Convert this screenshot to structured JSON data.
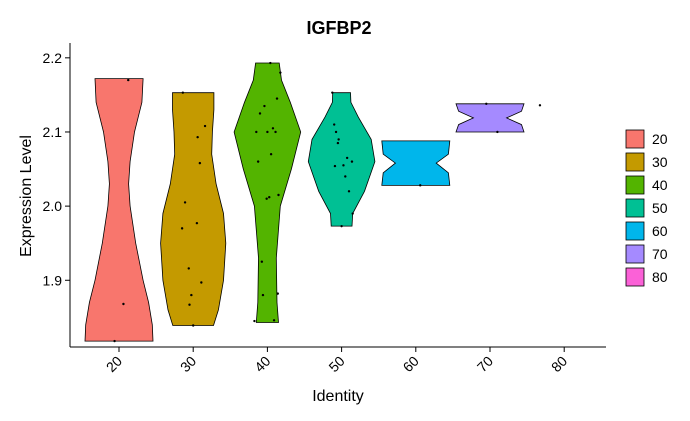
{
  "chart_data": {
    "type": "violin",
    "title": "IGFBP2",
    "xlabel": "Identity",
    "ylabel": "Expression Level",
    "categories": [
      "20",
      "30",
      "40",
      "50",
      "60",
      "70",
      "80"
    ],
    "ylim": [
      1.81,
      2.22
    ],
    "yticks": [
      1.9,
      2.0,
      2.1,
      2.2
    ],
    "ytick_labels": [
      "1.9",
      "2.0",
      "2.1",
      "2.2"
    ],
    "grid": false,
    "legend_position": "right",
    "legend": [
      {
        "label": "20",
        "color": "#F8766D"
      },
      {
        "label": "30",
        "color": "#C49A00"
      },
      {
        "label": "40",
        "color": "#53B400"
      },
      {
        "label": "50",
        "color": "#00C094"
      },
      {
        "label": "60",
        "color": "#00B6EB"
      },
      {
        "label": "70",
        "color": "#A58AFF"
      },
      {
        "label": "80",
        "color": "#FB61D7"
      }
    ],
    "series": [
      {
        "category": "20",
        "color": "#F8766D",
        "ymin": 1.818,
        "ymax": 2.172,
        "profile": [
          [
            1.818,
            0.92
          ],
          [
            1.84,
            0.9
          ],
          [
            1.87,
            0.8
          ],
          [
            1.9,
            0.65
          ],
          [
            1.95,
            0.45
          ],
          [
            2.0,
            0.3
          ],
          [
            2.03,
            0.26
          ],
          [
            2.06,
            0.3
          ],
          [
            2.1,
            0.42
          ],
          [
            2.14,
            0.62
          ],
          [
            2.172,
            0.65
          ]
        ],
        "points": [
          [
            -0.12,
            1.818
          ],
          [
            0.12,
            1.868
          ],
          [
            0.25,
            2.17
          ]
        ]
      },
      {
        "category": "30",
        "color": "#C49A00",
        "ymin": 1.839,
        "ymax": 2.153,
        "profile": [
          [
            1.839,
            0.55
          ],
          [
            1.86,
            0.68
          ],
          [
            1.9,
            0.82
          ],
          [
            1.95,
            0.88
          ],
          [
            1.99,
            0.82
          ],
          [
            2.03,
            0.62
          ],
          [
            2.07,
            0.5
          ],
          [
            2.1,
            0.52
          ],
          [
            2.13,
            0.56
          ],
          [
            2.153,
            0.56
          ]
        ],
        "points": [
          [
            -0.28,
            2.153
          ],
          [
            -0.22,
            2.005
          ],
          [
            -0.3,
            1.97
          ],
          [
            -0.12,
            1.916
          ],
          [
            -0.05,
            1.88
          ],
          [
            -0.1,
            1.867
          ],
          [
            0.1,
            1.977
          ],
          [
            0.18,
            2.058
          ],
          [
            0.12,
            2.093
          ],
          [
            0.22,
            1.897
          ],
          [
            0.32,
            2.108
          ],
          [
            0.0,
            1.839
          ]
        ]
      },
      {
        "category": "40",
        "color": "#53B400",
        "ymin": 1.843,
        "ymax": 2.193,
        "profile": [
          [
            1.843,
            0.3
          ],
          [
            1.87,
            0.26
          ],
          [
            1.93,
            0.24
          ],
          [
            2.0,
            0.35
          ],
          [
            2.05,
            0.65
          ],
          [
            2.1,
            0.9
          ],
          [
            2.14,
            0.62
          ],
          [
            2.17,
            0.38
          ],
          [
            2.193,
            0.32
          ]
        ],
        "points": [
          [
            -0.3,
            2.1
          ],
          [
            -0.35,
            1.845
          ],
          [
            -0.25,
            2.06
          ],
          [
            -0.2,
            2.125
          ],
          [
            -0.15,
            1.925
          ],
          [
            -0.12,
            1.88
          ],
          [
            -0.08,
            2.135
          ],
          [
            0.0,
            2.1
          ],
          [
            0.05,
            2.012
          ],
          [
            0.1,
            2.07
          ],
          [
            0.15,
            2.105
          ],
          [
            0.22,
            2.1
          ],
          [
            0.26,
            2.145
          ],
          [
            0.28,
            1.882
          ],
          [
            0.3,
            2.015
          ],
          [
            0.35,
            2.18
          ],
          [
            0.18,
            1.846
          ],
          [
            0.08,
            2.193
          ],
          [
            -0.02,
            2.01
          ]
        ]
      },
      {
        "category": "50",
        "color": "#00C094",
        "ymin": 1.973,
        "ymax": 2.153,
        "profile": [
          [
            1.973,
            0.28
          ],
          [
            1.99,
            0.3
          ],
          [
            2.02,
            0.62
          ],
          [
            2.06,
            0.9
          ],
          [
            2.09,
            0.8
          ],
          [
            2.12,
            0.45
          ],
          [
            2.14,
            0.25
          ],
          [
            2.153,
            0.24
          ]
        ],
        "points": [
          [
            -0.25,
            2.153
          ],
          [
            -0.2,
            2.11
          ],
          [
            -0.15,
            2.1
          ],
          [
            -0.18,
            2.054
          ],
          [
            -0.08,
            2.09
          ],
          [
            0.05,
            2.055
          ],
          [
            0.1,
            2.04
          ],
          [
            0.15,
            2.065
          ],
          [
            0.2,
            2.02
          ],
          [
            0.28,
            2.06
          ],
          [
            0.3,
            1.99
          ],
          [
            0.0,
            1.973
          ],
          [
            -0.1,
            2.085
          ]
        ]
      },
      {
        "category": "60",
        "color": "#00B6EB",
        "ymin": 2.028,
        "ymax": 2.088,
        "profile": [
          [
            2.028,
            0.92
          ],
          [
            2.045,
            0.88
          ],
          [
            2.058,
            0.55
          ],
          [
            2.07,
            0.88
          ],
          [
            2.088,
            0.92
          ]
        ],
        "points": [
          [
            0.12,
            2.028
          ]
        ]
      },
      {
        "category": "70",
        "color": "#A58AFF",
        "ymin": 2.1,
        "ymax": 2.138,
        "profile": [
          [
            2.1,
            0.92
          ],
          [
            2.11,
            0.85
          ],
          [
            2.119,
            0.45
          ],
          [
            2.128,
            0.85
          ],
          [
            2.138,
            0.92
          ]
        ],
        "points": [
          [
            -0.1,
            2.138
          ],
          [
            0.2,
            2.1
          ],
          [
            1.35,
            2.136
          ]
        ]
      },
      {
        "category": "80",
        "color": "#FB61D7",
        "ymin": null,
        "ymax": null,
        "profile": [],
        "points": []
      }
    ]
  }
}
